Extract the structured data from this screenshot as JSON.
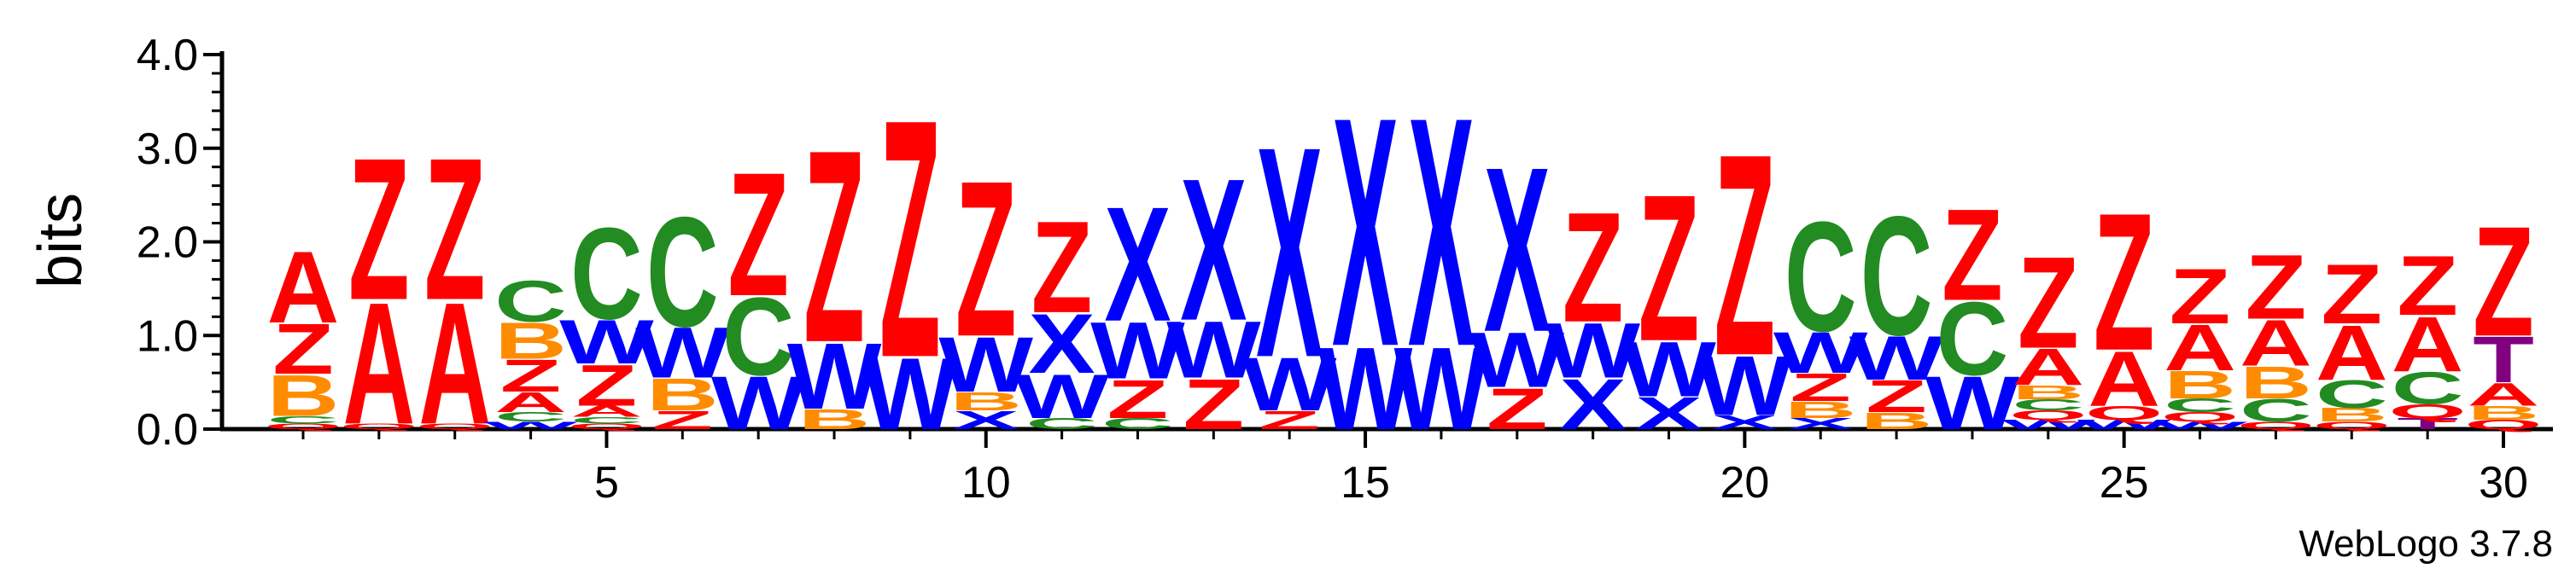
{
  "chart_data": {
    "type": "sequence-logo",
    "ylabel": "bits",
    "ylim": [
      0,
      4.0
    ],
    "yticks": [
      "0.0",
      "1.0",
      "2.0",
      "3.0",
      "4.0"
    ],
    "xticks": [
      5,
      10,
      15,
      20,
      25,
      30
    ],
    "footer": "WebLogo 3.7.8",
    "colors": {
      "A": "#ff0000",
      "Z": "#ff0000",
      "Q": "#ff0000",
      "C": "#228b22",
      "W": "#0000ff",
      "X": "#0000ff",
      "B": "#ff8c00",
      "T": "#800080"
    },
    "columns": [
      [
        [
          "Q",
          0.06
        ],
        [
          "C",
          0.08
        ],
        [
          "B",
          0.45
        ],
        [
          "Z",
          0.55
        ],
        [
          "A",
          0.78
        ]
      ],
      [
        [
          "Q",
          0.06
        ],
        [
          "A",
          1.33
        ],
        [
          "Z",
          1.55
        ]
      ],
      [
        [
          "Q",
          0.06
        ],
        [
          "A",
          1.33
        ],
        [
          "Z",
          1.55
        ]
      ],
      [
        [
          "W",
          0.08
        ],
        [
          "C",
          0.1
        ],
        [
          "A",
          0.22
        ],
        [
          "Z",
          0.35
        ],
        [
          "B",
          0.4
        ],
        [
          "C",
          0.45
        ]
      ],
      [
        [
          "Q",
          0.06
        ],
        [
          "C",
          0.07
        ],
        [
          "A",
          0.12
        ],
        [
          "Z",
          0.45
        ],
        [
          "W",
          0.48
        ],
        [
          "C",
          1.0
        ]
      ],
      [
        [
          "Z",
          0.2
        ],
        [
          "B",
          0.35
        ],
        [
          "W",
          0.55
        ],
        [
          "C",
          1.2
        ]
      ],
      [
        [
          "W",
          0.58
        ],
        [
          "C",
          0.85
        ],
        [
          "Z",
          1.35
        ]
      ],
      [
        [
          "B",
          0.22
        ],
        [
          "W",
          0.72
        ],
        [
          "Z",
          2.1
        ]
      ],
      [
        [
          "W",
          0.78
        ],
        [
          "Z",
          2.6
        ]
      ],
      [
        [
          "X",
          0.2
        ],
        [
          "B",
          0.2
        ],
        [
          "W",
          0.6
        ],
        [
          "Z",
          1.7
        ]
      ],
      [
        [
          "C",
          0.12
        ],
        [
          "W",
          0.48
        ],
        [
          "X",
          0.65
        ],
        [
          "Z",
          1.0
        ]
      ],
      [
        [
          "C",
          0.12
        ],
        [
          "Z",
          0.42
        ],
        [
          "W",
          0.62
        ],
        [
          "X",
          1.25
        ]
      ],
      [
        [
          "Z",
          0.55
        ],
        [
          "W",
          0.62
        ],
        [
          "X",
          1.55
        ]
      ],
      [
        [
          "Z",
          0.2
        ],
        [
          "W",
          0.58
        ],
        [
          "X",
          2.3
        ]
      ],
      [
        [
          "W",
          0.9
        ],
        [
          "X",
          2.5
        ]
      ],
      [
        [
          "W",
          0.9
        ],
        [
          "X",
          2.5
        ]
      ],
      [
        [
          "Z",
          0.45
        ],
        [
          "W",
          0.6
        ],
        [
          "X",
          1.8
        ]
      ],
      [
        [
          "X",
          0.55
        ],
        [
          "W",
          0.6
        ],
        [
          "Z",
          1.2
        ]
      ],
      [
        [
          "X",
          0.35
        ],
        [
          "W",
          0.6
        ],
        [
          "Z",
          1.6
        ]
      ],
      [
        [
          "X",
          0.15
        ],
        [
          "W",
          0.65
        ],
        [
          "Z",
          2.2
        ]
      ],
      [
        [
          "X",
          0.12
        ],
        [
          "B",
          0.18
        ],
        [
          "Z",
          0.3
        ],
        [
          "W",
          0.45
        ],
        [
          "C",
          1.2
        ]
      ],
      [
        [
          "B",
          0.18
        ],
        [
          "Z",
          0.35
        ],
        [
          "W",
          0.48
        ],
        [
          "C",
          1.3
        ]
      ],
      [
        [
          "W",
          0.58
        ],
        [
          "C",
          0.8
        ],
        [
          "Z",
          1.0
        ]
      ],
      [
        [
          "W",
          0.1
        ],
        [
          "Q",
          0.1
        ],
        [
          "C",
          0.12
        ],
        [
          "B",
          0.15
        ],
        [
          "A",
          0.4
        ],
        [
          "Z",
          1.0
        ]
      ],
      [
        [
          "W",
          0.1
        ],
        [
          "Q",
          0.15
        ],
        [
          "A",
          0.6
        ],
        [
          "Z",
          1.5
        ]
      ],
      [
        [
          "W",
          0.08
        ],
        [
          "Q",
          0.1
        ],
        [
          "C",
          0.15
        ],
        [
          "B",
          0.3
        ],
        [
          "A",
          0.5
        ],
        [
          "Z",
          0.6
        ]
      ],
      [
        [
          "Q",
          0.08
        ],
        [
          "C",
          0.25
        ],
        [
          "B",
          0.35
        ],
        [
          "A",
          0.5
        ],
        [
          "Z",
          0.7
        ]
      ],
      [
        [
          "Q",
          0.08
        ],
        [
          "B",
          0.15
        ],
        [
          "C",
          0.3
        ],
        [
          "A",
          0.6
        ],
        [
          "Z",
          0.65
        ]
      ],
      [
        [
          "T",
          0.12
        ],
        [
          "Q",
          0.15
        ],
        [
          "C",
          0.35
        ],
        [
          "A",
          0.6
        ],
        [
          "Z",
          0.65
        ]
      ],
      [
        [
          "Q",
          0.1
        ],
        [
          "B",
          0.15
        ],
        [
          "A",
          0.25
        ],
        [
          "T",
          0.5
        ],
        [
          "Z",
          1.2
        ]
      ]
    ]
  }
}
